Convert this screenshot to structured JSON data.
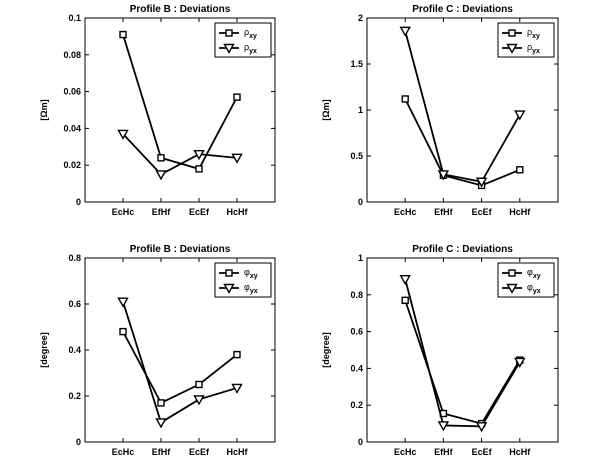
{
  "chart_data": [
    {
      "type": "line",
      "title": "Profile B : Deviations",
      "xlabel": "",
      "ylabel": "[Ωm]",
      "categories": [
        "EcHc",
        "EfHf",
        "EcEf",
        "HcHf"
      ],
      "ylim": [
        0,
        0.1
      ],
      "yticks": [
        "0",
        "0.02",
        "0.04",
        "0.06",
        "0.08",
        "0.1"
      ],
      "legend_position": "top-right",
      "grid": false,
      "series": [
        {
          "name": "ρ",
          "subscript": "xy",
          "marker": "square",
          "values": [
            0.091,
            0.024,
            0.018,
            0.057
          ]
        },
        {
          "name": "ρ",
          "subscript": "yx",
          "marker": "triangle-down",
          "values": [
            0.037,
            0.015,
            0.026,
            0.024
          ]
        }
      ]
    },
    {
      "type": "line",
      "title": "Profile C : Deviations",
      "xlabel": "",
      "ylabel": "[Ωm]",
      "categories": [
        "EcHc",
        "EfHf",
        "EcEf",
        "HcHf"
      ],
      "ylim": [
        0,
        2
      ],
      "yticks": [
        "0",
        "0.5",
        "1",
        "1.5",
        "2"
      ],
      "legend_position": "top-right",
      "grid": false,
      "series": [
        {
          "name": "ρ",
          "subscript": "xy",
          "marker": "square",
          "values": [
            1.12,
            0.29,
            0.18,
            0.35
          ]
        },
        {
          "name": "ρ",
          "subscript": "yx",
          "marker": "triangle-down",
          "values": [
            1.86,
            0.3,
            0.22,
            0.95
          ]
        }
      ]
    },
    {
      "type": "line",
      "title": "Profile B : Deviations",
      "xlabel": "",
      "ylabel": "[degree]",
      "categories": [
        "EcHc",
        "EfHf",
        "EcEf",
        "HcHf"
      ],
      "ylim": [
        0,
        0.8
      ],
      "yticks": [
        "0",
        "0.2",
        "0.4",
        "0.6",
        "0.8"
      ],
      "legend_position": "top-right",
      "grid": false,
      "series": [
        {
          "name": "φ",
          "subscript": "xy",
          "marker": "square",
          "values": [
            0.48,
            0.17,
            0.25,
            0.38
          ]
        },
        {
          "name": "φ",
          "subscript": "yx",
          "marker": "triangle-down",
          "values": [
            0.61,
            0.085,
            0.185,
            0.235
          ]
        }
      ]
    },
    {
      "type": "line",
      "title": "Profile C : Deviations",
      "xlabel": "",
      "ylabel": "[degree]",
      "categories": [
        "EcHc",
        "EfHf",
        "EcEf",
        "HcHf"
      ],
      "ylim": [
        0,
        1
      ],
      "yticks": [
        "0",
        "0.2",
        "0.4",
        "0.6",
        "0.8",
        "1"
      ],
      "legend_position": "top-right",
      "grid": false,
      "series": [
        {
          "name": "φ",
          "subscript": "xy",
          "marker": "square",
          "values": [
            0.77,
            0.155,
            0.1,
            0.445
          ]
        },
        {
          "name": "φ",
          "subscript": "yx",
          "marker": "triangle-down",
          "values": [
            0.885,
            0.09,
            0.085,
            0.435
          ]
        }
      ]
    }
  ]
}
